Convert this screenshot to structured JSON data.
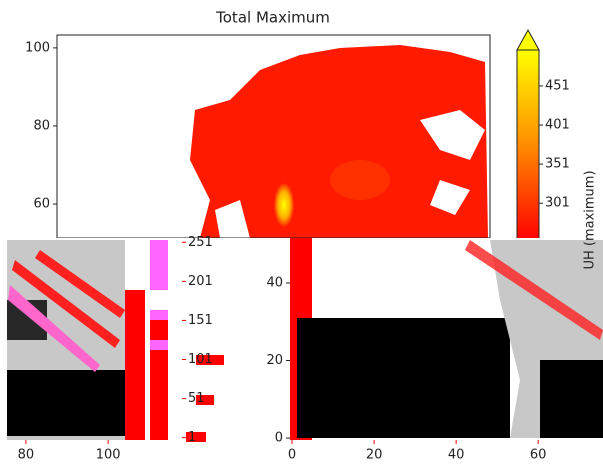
{
  "chart_data": [
    {
      "type": "heatmap",
      "title": "Total Maximum",
      "ylim": [
        51.3,
        103.3
      ],
      "yticks": [
        60,
        80,
        100
      ]
    },
    {
      "type": "colorbar",
      "label": "UH (maximum)",
      "ylim": [
        -2,
        497
      ],
      "yticks": [
        1,
        51,
        101,
        151,
        201,
        251,
        301,
        351,
        401,
        451
      ],
      "colors": [
        "#ff0000",
        "#ff8c00",
        "#ffff00"
      ]
    },
    {
      "type": "heatmap",
      "xlim": [
        -0.5,
        75.8
      ],
      "ylim": [
        -0.5,
        51.6
      ],
      "xticks": [
        0,
        20,
        40,
        60
      ],
      "yticks": [
        0,
        20,
        40
      ]
    },
    {
      "type": "heatmap",
      "xlim": [
        75.4,
        104.1
      ],
      "xticks": [
        80,
        100
      ]
    }
  ]
}
